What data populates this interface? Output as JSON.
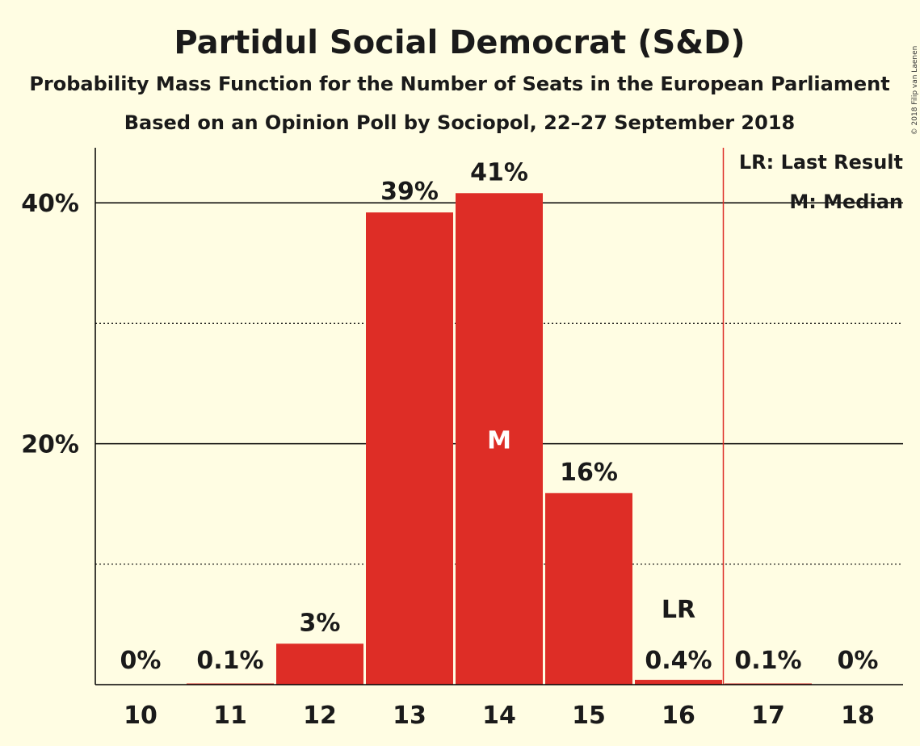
{
  "chart_data": {
    "type": "bar",
    "title": "Partidul Social Democrat (S&D)",
    "subtitle": "Probability Mass Function for the Number of Seats in the European Parliament",
    "subtitle2": "Based on an Opinion Poll by Sociopol, 22–27 September 2018",
    "copyright": "© 2018 Filip van Laenen",
    "categories": [
      "10",
      "11",
      "12",
      "13",
      "14",
      "15",
      "16",
      "17",
      "18"
    ],
    "values": [
      0,
      0.1,
      3.4,
      39.2,
      40.8,
      15.9,
      0.4,
      0.1,
      0
    ],
    "value_labels": [
      "0%",
      "0.1%",
      "3%",
      "39%",
      "41%",
      "16%",
      "0.4%",
      "0.1%",
      "0%"
    ],
    "ylim": [
      0,
      45
    ],
    "y_ticks": [
      {
        "value": 20,
        "label": "20%"
      },
      {
        "value": 40,
        "label": "40%"
      }
    ],
    "y_minor_gridlines": [
      10,
      30
    ],
    "median_category": "14",
    "median_marker": "M",
    "last_result_category": "16",
    "last_result_marker": "LR",
    "legend": {
      "last_result": "LR: Last Result",
      "median": "M: Median",
      "placement": "top-right"
    },
    "colors": {
      "bar": "#DE2D26",
      "background": "#FFFDE3",
      "last_result_line": "#DE2D26",
      "text": "#1a1a1a"
    }
  }
}
